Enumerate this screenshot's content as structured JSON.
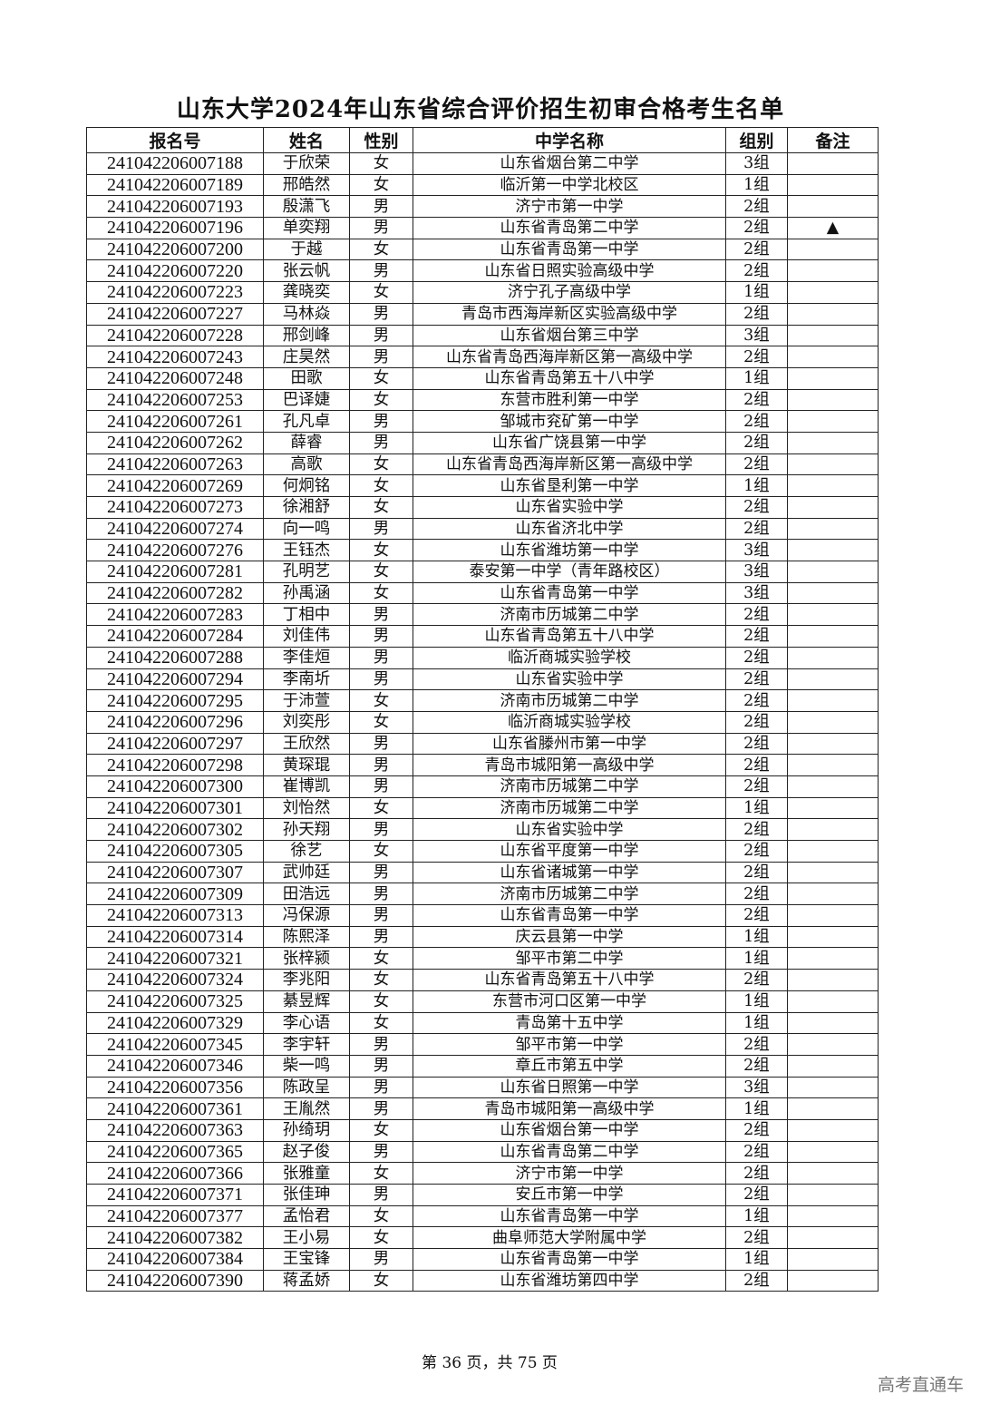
{
  "title": "山东大学2024年山东省综合评价招生初审合格考生名单",
  "headers": [
    "报名号",
    "姓名",
    "性别",
    "中学名称",
    "组别",
    "备注"
  ],
  "rows": [
    [
      "241042206007188",
      "于欣荣",
      "女",
      "山东省烟台第二中学",
      "3组",
      ""
    ],
    [
      "241042206007189",
      "邢皓然",
      "女",
      "临沂第一中学北校区",
      "1组",
      ""
    ],
    [
      "241042206007193",
      "殷潇飞",
      "男",
      "济宁市第一中学",
      "2组",
      ""
    ],
    [
      "241042206007196",
      "单奕翔",
      "男",
      "山东省青岛第二中学",
      "2组",
      "▲"
    ],
    [
      "241042206007200",
      "于越",
      "女",
      "山东省青岛第一中学",
      "2组",
      ""
    ],
    [
      "241042206007220",
      "张云帆",
      "男",
      "山东省日照实验高级中学",
      "2组",
      ""
    ],
    [
      "241042206007223",
      "龚晓奕",
      "女",
      "济宁孔子高级中学",
      "1组",
      ""
    ],
    [
      "241042206007227",
      "马林焱",
      "男",
      "青岛市西海岸新区实验高级中学",
      "2组",
      ""
    ],
    [
      "241042206007228",
      "邢剑峰",
      "男",
      "山东省烟台第三中学",
      "3组",
      ""
    ],
    [
      "241042206007243",
      "庄昊然",
      "男",
      "山东省青岛西海岸新区第一高级中学",
      "2组",
      ""
    ],
    [
      "241042206007248",
      "田歌",
      "女",
      "山东省青岛第五十八中学",
      "1组",
      ""
    ],
    [
      "241042206007253",
      "巴译婕",
      "女",
      "东营市胜利第一中学",
      "2组",
      ""
    ],
    [
      "241042206007261",
      "孔凡卓",
      "男",
      "邹城市兖矿第一中学",
      "2组",
      ""
    ],
    [
      "241042206007262",
      "薛睿",
      "男",
      "山东省广饶县第一中学",
      "2组",
      ""
    ],
    [
      "241042206007263",
      "高歌",
      "女",
      "山东省青岛西海岸新区第一高级中学",
      "2组",
      ""
    ],
    [
      "241042206007269",
      "何炯铭",
      "女",
      "山东省垦利第一中学",
      "1组",
      ""
    ],
    [
      "241042206007273",
      "徐湘舒",
      "女",
      "山东省实验中学",
      "2组",
      ""
    ],
    [
      "241042206007274",
      "向一鸣",
      "男",
      "山东省济北中学",
      "2组",
      ""
    ],
    [
      "241042206007276",
      "王钰杰",
      "女",
      "山东省潍坊第一中学",
      "3组",
      ""
    ],
    [
      "241042206007281",
      "孔明艺",
      "女",
      "泰安第一中学（青年路校区）",
      "3组",
      ""
    ],
    [
      "241042206007282",
      "孙禹涵",
      "女",
      "山东省青岛第一中学",
      "3组",
      ""
    ],
    [
      "241042206007283",
      "丁相中",
      "男",
      "济南市历城第二中学",
      "2组",
      ""
    ],
    [
      "241042206007284",
      "刘佳伟",
      "男",
      "山东省青岛第五十八中学",
      "2组",
      ""
    ],
    [
      "241042206007288",
      "李佳烜",
      "男",
      "临沂商城实验学校",
      "2组",
      ""
    ],
    [
      "241042206007294",
      "李南圻",
      "男",
      "山东省实验中学",
      "2组",
      ""
    ],
    [
      "241042206007295",
      "于沛萱",
      "女",
      "济南市历城第二中学",
      "2组",
      ""
    ],
    [
      "241042206007296",
      "刘奕彤",
      "女",
      "临沂商城实验学校",
      "2组",
      ""
    ],
    [
      "241042206007297",
      "王欣然",
      "男",
      "山东省滕州市第一中学",
      "2组",
      ""
    ],
    [
      "241042206007298",
      "黄琛琨",
      "男",
      "青岛市城阳第一高级中学",
      "2组",
      ""
    ],
    [
      "241042206007300",
      "崔博凯",
      "男",
      "济南市历城第二中学",
      "2组",
      ""
    ],
    [
      "241042206007301",
      "刘怡然",
      "女",
      "济南市历城第二中学",
      "1组",
      ""
    ],
    [
      "241042206007302",
      "孙天翔",
      "男",
      "山东省实验中学",
      "2组",
      ""
    ],
    [
      "241042206007305",
      "徐艺",
      "女",
      "山东省平度第一中学",
      "2组",
      ""
    ],
    [
      "241042206007307",
      "武帅廷",
      "男",
      "山东省诸城第一中学",
      "2组",
      ""
    ],
    [
      "241042206007309",
      "田浩远",
      "男",
      "济南市历城第二中学",
      "2组",
      ""
    ],
    [
      "241042206007313",
      "冯保源",
      "男",
      "山东省青岛第一中学",
      "2组",
      ""
    ],
    [
      "241042206007314",
      "陈熙泽",
      "男",
      "庆云县第一中学",
      "1组",
      ""
    ],
    [
      "241042206007321",
      "张梓颍",
      "女",
      "邹平市第二中学",
      "1组",
      ""
    ],
    [
      "241042206007324",
      "李兆阳",
      "女",
      "山东省青岛第五十八中学",
      "2组",
      ""
    ],
    [
      "241042206007325",
      "綦昱辉",
      "女",
      "东营市河口区第一中学",
      "1组",
      ""
    ],
    [
      "241042206007329",
      "李心语",
      "女",
      "青岛第十五中学",
      "1组",
      ""
    ],
    [
      "241042206007345",
      "李宇轩",
      "男",
      "邹平市第一中学",
      "2组",
      ""
    ],
    [
      "241042206007346",
      "柴一鸣",
      "男",
      "章丘市第五中学",
      "2组",
      ""
    ],
    [
      "241042206007356",
      "陈政呈",
      "男",
      "山东省日照第一中学",
      "3组",
      ""
    ],
    [
      "241042206007361",
      "王胤然",
      "男",
      "青岛市城阳第一高级中学",
      "1组",
      ""
    ],
    [
      "241042206007363",
      "孙绮玥",
      "女",
      "山东省烟台第一中学",
      "2组",
      ""
    ],
    [
      "241042206007365",
      "赵子俊",
      "男",
      "山东省青岛第二中学",
      "2组",
      ""
    ],
    [
      "241042206007366",
      "张雅童",
      "女",
      "济宁市第一中学",
      "2组",
      ""
    ],
    [
      "241042206007371",
      "张佳珅",
      "男",
      "安丘市第一中学",
      "2组",
      ""
    ],
    [
      "241042206007377",
      "孟怡君",
      "女",
      "山东省青岛第一中学",
      "1组",
      ""
    ],
    [
      "241042206007382",
      "王小易",
      "女",
      "曲阜师范大学附属中学",
      "2组",
      ""
    ],
    [
      "241042206007384",
      "王宝锋",
      "男",
      "山东省青岛第一中学",
      "1组",
      ""
    ],
    [
      "241042206007390",
      "蒋孟娇",
      "女",
      "山东省潍坊第四中学",
      "2组",
      ""
    ]
  ],
  "footer": "第 36 页，共 75 页",
  "watermark": "高考直通车"
}
